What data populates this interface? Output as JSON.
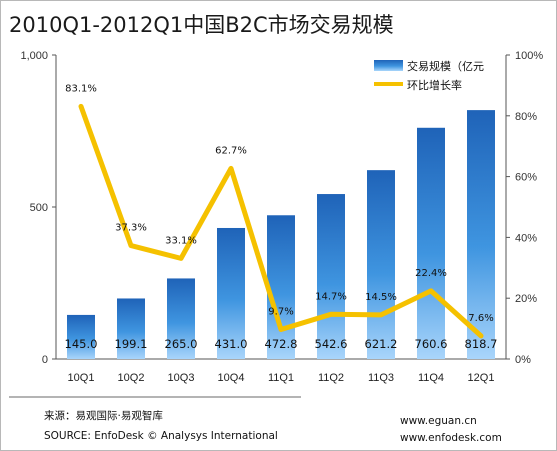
{
  "chart_data": {
    "type": "bar",
    "title": "2010Q1-2012Q1中国B2C市场交易规模",
    "categories": [
      "10Q1",
      "10Q2",
      "10Q3",
      "10Q4",
      "11Q1",
      "11Q2",
      "11Q3",
      "11Q4",
      "12Q1"
    ],
    "series": [
      {
        "name": "交易规模（亿元",
        "kind": "bar",
        "axis": "left",
        "values": [
          145.0,
          199.1,
          265.0,
          431.0,
          472.8,
          542.6,
          621.2,
          760.6,
          818.7
        ],
        "labels": [
          "145.0",
          "199.1",
          "265.0",
          "431.0",
          "472.8",
          "542.6",
          "621.2",
          "760.6",
          "818.7"
        ],
        "color": "#2f7fd0"
      },
      {
        "name": "环比增长率",
        "kind": "line",
        "axis": "right",
        "values": [
          83.1,
          37.3,
          33.1,
          62.7,
          9.7,
          14.7,
          14.5,
          22.4,
          7.6
        ],
        "labels": [
          "83.1%",
          "37.3%",
          "33.1%",
          "62.7%",
          "9.7%",
          "14.7%",
          "14.5%",
          "22.4%",
          "7.6%"
        ],
        "color": "#f5c100"
      }
    ],
    "y_left": {
      "range": [
        0,
        1000
      ],
      "ticks": [
        "0",
        "500",
        "1,000"
      ]
    },
    "y_right": {
      "range": [
        0,
        100
      ],
      "ticks": [
        "0%",
        "20%",
        "40%",
        "60%",
        "80%",
        "100%"
      ]
    },
    "grid": false,
    "legend": "top-right"
  },
  "footer": {
    "source_cn": "来源：易观国际·易观智库",
    "source_en": "SOURCE: EnfoDesk © Analysys International",
    "site1": "www.eguan.cn",
    "site2": "www.enfodesk.com"
  }
}
